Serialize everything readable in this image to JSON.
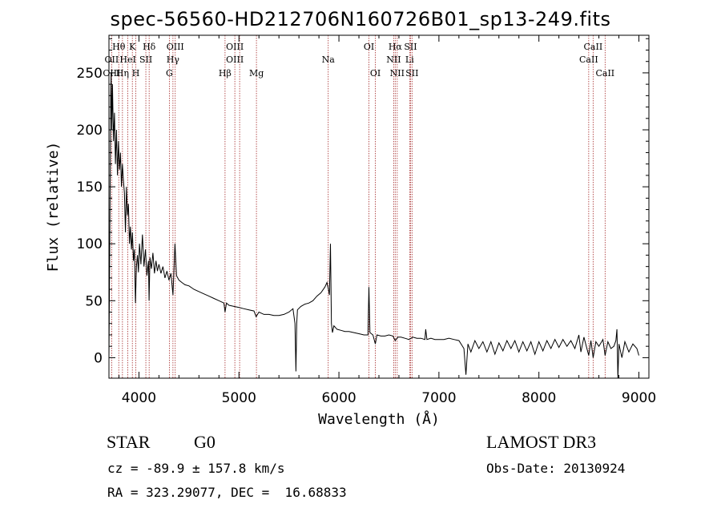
{
  "chart_data": {
    "type": "line",
    "title": "spec-56560-HD212706N160726B01_sp13-249.fits",
    "xlabel": "Wavelength (Å)",
    "ylabel": "Flux (relative)",
    "xlim": [
      3700,
      9100
    ],
    "ylim": [
      -18,
      283
    ],
    "x_ticks": [
      4000,
      5000,
      6000,
      7000,
      8000,
      9000
    ],
    "y_ticks": [
      0,
      50,
      100,
      150,
      200,
      250
    ],
    "grid": false,
    "series": [
      {
        "points": [
          [
            3700,
            0
          ],
          [
            3705,
            60
          ],
          [
            3712,
            150
          ],
          [
            3718,
            230
          ],
          [
            3722,
            250
          ],
          [
            3728,
            200
          ],
          [
            3735,
            240
          ],
          [
            3745,
            190
          ],
          [
            3755,
            215
          ],
          [
            3765,
            170
          ],
          [
            3775,
            200
          ],
          [
            3785,
            160
          ],
          [
            3795,
            190
          ],
          [
            3805,
            165
          ],
          [
            3815,
            180
          ],
          [
            3825,
            150
          ],
          [
            3835,
            170
          ],
          [
            3845,
            155
          ],
          [
            3855,
            145
          ],
          [
            3865,
            110
          ],
          [
            3875,
            150
          ],
          [
            3885,
            125
          ],
          [
            3895,
            135
          ],
          [
            3905,
            100
          ],
          [
            3915,
            115
          ],
          [
            3925,
            95
          ],
          [
            3935,
            110
          ],
          [
            3945,
            85
          ],
          [
            3955,
            95
          ],
          [
            3965,
            48
          ],
          [
            3975,
            80
          ],
          [
            3985,
            90
          ],
          [
            3995,
            75
          ],
          [
            4005,
            100
          ],
          [
            4020,
            82
          ],
          [
            4035,
            108
          ],
          [
            4050,
            80
          ],
          [
            4065,
            95
          ],
          [
            4080,
            72
          ],
          [
            4095,
            85
          ],
          [
            4101,
            50
          ],
          [
            4110,
            88
          ],
          [
            4125,
            78
          ],
          [
            4140,
            92
          ],
          [
            4155,
            74
          ],
          [
            4170,
            85
          ],
          [
            4185,
            76
          ],
          [
            4200,
            82
          ],
          [
            4220,
            74
          ],
          [
            4240,
            80
          ],
          [
            4260,
            70
          ],
          [
            4280,
            76
          ],
          [
            4300,
            68
          ],
          [
            4320,
            74
          ],
          [
            4340,
            55
          ],
          [
            4360,
            100
          ],
          [
            4375,
            72
          ],
          [
            4400,
            68
          ],
          [
            4430,
            66
          ],
          [
            4460,
            64
          ],
          [
            4500,
            63
          ],
          [
            4550,
            60
          ],
          [
            4600,
            58
          ],
          [
            4650,
            56
          ],
          [
            4700,
            54
          ],
          [
            4750,
            52
          ],
          [
            4800,
            50
          ],
          [
            4850,
            48
          ],
          [
            4861,
            40
          ],
          [
            4875,
            48
          ],
          [
            4900,
            46
          ],
          [
            4950,
            45
          ],
          [
            5000,
            44
          ],
          [
            5050,
            43
          ],
          [
            5100,
            42
          ],
          [
            5150,
            41
          ],
          [
            5172,
            36
          ],
          [
            5200,
            40
          ],
          [
            5250,
            38
          ],
          [
            5300,
            38
          ],
          [
            5350,
            37
          ],
          [
            5400,
            37
          ],
          [
            5450,
            38
          ],
          [
            5500,
            40
          ],
          [
            5540,
            43
          ],
          [
            5560,
            30
          ],
          [
            5570,
            -12
          ],
          [
            5578,
            30
          ],
          [
            5585,
            42
          ],
          [
            5620,
            45
          ],
          [
            5660,
            47
          ],
          [
            5700,
            48
          ],
          [
            5740,
            50
          ],
          [
            5780,
            54
          ],
          [
            5820,
            57
          ],
          [
            5860,
            62
          ],
          [
            5880,
            66
          ],
          [
            5895,
            60
          ],
          [
            5905,
            55
          ],
          [
            5915,
            100
          ],
          [
            5925,
            30
          ],
          [
            5935,
            22
          ],
          [
            5950,
            28
          ],
          [
            5980,
            25
          ],
          [
            6020,
            24
          ],
          [
            6060,
            23
          ],
          [
            6100,
            23
          ],
          [
            6150,
            22
          ],
          [
            6200,
            21
          ],
          [
            6250,
            20
          ],
          [
            6290,
            20
          ],
          [
            6300,
            62
          ],
          [
            6310,
            22
          ],
          [
            6340,
            20
          ],
          [
            6364,
            12
          ],
          [
            6380,
            20
          ],
          [
            6420,
            19
          ],
          [
            6460,
            19
          ],
          [
            6500,
            20
          ],
          [
            6540,
            19
          ],
          [
            6563,
            15
          ],
          [
            6590,
            18
          ],
          [
            6620,
            18
          ],
          [
            6660,
            17
          ],
          [
            6700,
            16
          ],
          [
            6740,
            18
          ],
          [
            6780,
            17
          ],
          [
            6820,
            17
          ],
          [
            6860,
            16
          ],
          [
            6868,
            25
          ],
          [
            6880,
            16
          ],
          [
            6920,
            17
          ],
          [
            6960,
            16
          ],
          [
            7000,
            16
          ],
          [
            7050,
            16
          ],
          [
            7100,
            17
          ],
          [
            7150,
            16
          ],
          [
            7200,
            15
          ],
          [
            7250,
            8
          ],
          [
            7270,
            -15
          ],
          [
            7290,
            12
          ],
          [
            7320,
            5
          ],
          [
            7360,
            15
          ],
          [
            7400,
            8
          ],
          [
            7440,
            14
          ],
          [
            7480,
            5
          ],
          [
            7520,
            14
          ],
          [
            7560,
            3
          ],
          [
            7600,
            13
          ],
          [
            7640,
            6
          ],
          [
            7680,
            15
          ],
          [
            7720,
            8
          ],
          [
            7760,
            15
          ],
          [
            7800,
            5
          ],
          [
            7840,
            14
          ],
          [
            7880,
            6
          ],
          [
            7920,
            14
          ],
          [
            7960,
            3
          ],
          [
            8000,
            14
          ],
          [
            8040,
            6
          ],
          [
            8080,
            15
          ],
          [
            8120,
            8
          ],
          [
            8160,
            16
          ],
          [
            8200,
            9
          ],
          [
            8240,
            16
          ],
          [
            8280,
            10
          ],
          [
            8320,
            15
          ],
          [
            8360,
            8
          ],
          [
            8400,
            20
          ],
          [
            8420,
            5
          ],
          [
            8450,
            18
          ],
          [
            8480,
            8
          ],
          [
            8498,
            2
          ],
          [
            8520,
            15
          ],
          [
            8542,
            0
          ],
          [
            8570,
            14
          ],
          [
            8600,
            10
          ],
          [
            8640,
            16
          ],
          [
            8662,
            2
          ],
          [
            8690,
            14
          ],
          [
            8720,
            8
          ],
          [
            8750,
            10
          ],
          [
            8770,
            15
          ],
          [
            8780,
            25
          ],
          [
            8790,
            -18
          ],
          [
            8800,
            12
          ],
          [
            8830,
            0
          ],
          [
            8860,
            14
          ],
          [
            8900,
            5
          ],
          [
            8940,
            12
          ],
          [
            8980,
            8
          ],
          [
            9000,
            2
          ]
        ]
      }
    ],
    "line_labels": [
      {
        "label": "Hθ",
        "x": 3798,
        "row": 1
      },
      {
        "label": "K",
        "x": 3934,
        "row": 1
      },
      {
        "label": "Hδ",
        "x": 4102,
        "row": 1
      },
      {
        "label": "OIII",
        "x": 4363,
        "row": 1
      },
      {
        "label": "OIII",
        "x": 4959,
        "row": 1
      },
      {
        "label": "OI",
        "x": 6300,
        "row": 1
      },
      {
        "label": "Hα",
        "x": 6563,
        "row": 1
      },
      {
        "label": "SII",
        "x": 6716,
        "row": 1
      },
      {
        "label": "CaII",
        "x": 8542,
        "row": 1
      },
      {
        "label": "OII",
        "x": 3727,
        "row": 2
      },
      {
        "label": "HeI",
        "x": 3889,
        "row": 2
      },
      {
        "label": "SII",
        "x": 4069,
        "row": 2
      },
      {
        "label": "Hγ",
        "x": 4340,
        "row": 2
      },
      {
        "label": "OIII",
        "x": 4959,
        "row": 2
      },
      {
        "label": "Na",
        "x": 5893,
        "row": 2
      },
      {
        "label": "NII",
        "x": 6548,
        "row": 2
      },
      {
        "label": "Li",
        "x": 6707,
        "row": 2
      },
      {
        "label": "CaII",
        "x": 8498,
        "row": 2
      },
      {
        "label": "OIII",
        "x": 3727,
        "row": 3
      },
      {
        "label": "Hη",
        "x": 3835,
        "row": 3
      },
      {
        "label": "H",
        "x": 3969,
        "row": 3
      },
      {
        "label": "G",
        "x": 4304,
        "row": 3
      },
      {
        "label": "Hβ",
        "x": 4861,
        "row": 3
      },
      {
        "label": "Mg",
        "x": 5175,
        "row": 3
      },
      {
        "label": "OI",
        "x": 6364,
        "row": 3
      },
      {
        "label": "NII",
        "x": 6583,
        "row": 3
      },
      {
        "label": "SII",
        "x": 6731,
        "row": 3
      },
      {
        "label": "CaII",
        "x": 8662,
        "row": 3
      }
    ],
    "line_positions": [
      3727,
      3798,
      3835,
      3889,
      3934,
      3969,
      4069,
      4102,
      4304,
      4340,
      4363,
      4861,
      4959,
      5007,
      5175,
      5893,
      6300,
      6364,
      6548,
      6563,
      6583,
      6707,
      6716,
      6731,
      8498,
      8542,
      8662
    ]
  },
  "info": {
    "object_class": "STAR",
    "subclass": "G0",
    "survey": "LAMOST DR3",
    "cz": "cz = -89.9 ± 157.8 km/s",
    "obs_date": "Obs-Date: 20130924",
    "coords": "RA = 323.29077, DEC =  16.68833"
  },
  "colors": {
    "spectrum": "#000000",
    "line_markers": "#a52a2a"
  }
}
